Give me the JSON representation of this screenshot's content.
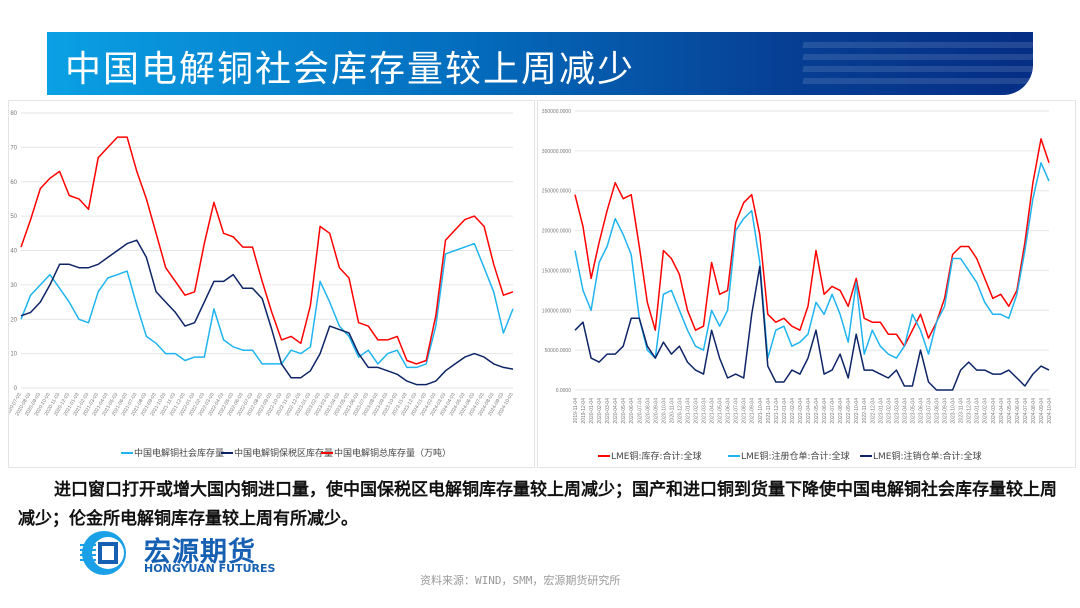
{
  "title": "中国电解铜社会库存量较上周减少",
  "colors": {
    "banner_start": "#0aa0e4",
    "banner_end": "#052e85",
    "red": "#ff0000",
    "light_blue": "#1fb4ef",
    "navy": "#0d2466"
  },
  "chart_data": [
    {
      "type": "line",
      "ylim": [
        0,
        80
      ],
      "yticks": [
        "0",
        "10",
        "20",
        "30",
        "40",
        "50",
        "60",
        "70",
        "80"
      ],
      "grid": true,
      "legend": "bottom",
      "x": [
        "2020-07-03",
        "2020-08-03",
        "2020-09-03",
        "2020-10-03",
        "2020-11-03",
        "2020-12-03",
        "2021-01-03",
        "2021-02-03",
        "2021-03-03",
        "2021-04-03",
        "2021-05-03",
        "2021-06-03",
        "2021-07-03",
        "2021-08-03",
        "2021-09-03",
        "2021-10-03",
        "2021-11-03",
        "2021-12-03",
        "2022-01-03",
        "2022-02-03",
        "2022-03-03",
        "2022-04-03",
        "2022-05-03",
        "2022-06-03",
        "2022-07-03",
        "2022-08-03",
        "2022-09-03",
        "2022-10-03",
        "2022-11-03",
        "2022-12-03",
        "2023-01-03",
        "2023-02-03",
        "2023-03-03",
        "2023-04-03",
        "2023-05-03",
        "2023-06-03",
        "2023-07-03",
        "2023-08-03",
        "2023-09-03",
        "2023-10-03",
        "2023-11-03",
        "2023-12-03",
        "2024-01-03",
        "2024-02-03",
        "2024-03-03",
        "2024-04-03",
        "2024-05-03",
        "2024-06-03",
        "2024-07-03",
        "2024-08-03",
        "2024-09-03",
        "2024-10-03"
      ],
      "series": [
        {
          "name": "中国电解铜社会库存量",
          "color": "#1fb4ef",
          "values": [
            20,
            27,
            30,
            33,
            29,
            25,
            20,
            19,
            28,
            32,
            33,
            34,
            24,
            15,
            13,
            10,
            10,
            8,
            9,
            9,
            23,
            14,
            12,
            11,
            11,
            7,
            7,
            7,
            11,
            10,
            12,
            31,
            25,
            18,
            15,
            9,
            11,
            7,
            10,
            11,
            6,
            6,
            7,
            18,
            39,
            40,
            41,
            42,
            35,
            28,
            16,
            23
          ]
        },
        {
          "name": "中国电解铜保税区库存量",
          "color": "#0d2466",
          "values": [
            21,
            22,
            25,
            30,
            36,
            36,
            35,
            35,
            36,
            38,
            40,
            42,
            43,
            38,
            28,
            25,
            22,
            18,
            19,
            25,
            31,
            31,
            33,
            29,
            29,
            26,
            17,
            7,
            3,
            3,
            5,
            10,
            18,
            17,
            16,
            10,
            6,
            6,
            5,
            4,
            2,
            1,
            1,
            2,
            5,
            7,
            9,
            10,
            9,
            7,
            6,
            5.5
          ]
        },
        {
          "name": "中国电解铜总库存量（万吨）",
          "color": "#ff0000",
          "values": [
            41,
            49,
            58,
            61,
            63,
            56,
            55,
            52,
            67,
            70,
            73,
            73,
            63,
            55,
            45,
            35,
            31,
            27,
            28,
            42,
            54,
            45,
            44,
            41,
            41,
            31,
            22,
            14,
            15,
            13,
            24,
            47,
            45,
            35,
            32,
            19,
            18,
            14,
            14,
            15,
            8,
            7,
            8,
            21,
            43,
            46,
            49,
            50,
            47,
            36,
            27,
            28
          ]
        }
      ]
    },
    {
      "type": "line",
      "ylim": [
        0,
        350000
      ],
      "yticks": [
        "0.0000",
        "50000.0000",
        "100000.0000",
        "150000.0000",
        "200000.0000",
        "250000.0000",
        "300000.0000",
        "350000.0000"
      ],
      "grid": true,
      "legend": "bottom",
      "x": [
        "2019-11-04",
        "2019-12-04",
        "2020-01-04",
        "2020-02-04",
        "2020-03-04",
        "2020-04-04",
        "2020-05-04",
        "2020-06-04",
        "2020-07-04",
        "2020-08-04",
        "2020-09-04",
        "2020-10-04",
        "2020-11-04",
        "2020-12-04",
        "2021-01-04",
        "2021-02-04",
        "2021-03-04",
        "2021-04-04",
        "2021-05-04",
        "2021-06-04",
        "2021-07-04",
        "2021-08-04",
        "2021-09-04",
        "2021-10-04",
        "2021-11-04",
        "2021-12-04",
        "2022-01-04",
        "2022-02-04",
        "2022-03-04",
        "2022-04-04",
        "2022-05-04",
        "2022-06-04",
        "2022-07-04",
        "2022-08-04",
        "2022-09-04",
        "2022-10-04",
        "2022-11-04",
        "2022-12-04",
        "2023-01-04",
        "2023-02-04",
        "2023-03-04",
        "2023-04-04",
        "2023-05-04",
        "2023-06-04",
        "2023-07-04",
        "2023-08-04",
        "2023-09-04",
        "2023-10-04",
        "2023-11-04",
        "2023-12-04",
        "2024-01-04",
        "2024-02-04",
        "2024-03-04",
        "2024-04-04",
        "2024-05-04",
        "2024-06-04",
        "2024-07-04",
        "2024-08-04",
        "2024-09-04",
        "2024-10-04"
      ],
      "series": [
        {
          "name": "LME铜:库存:合计:全球",
          "color": "#ff0000",
          "values": [
            245000,
            205000,
            140000,
            185000,
            225000,
            260000,
            240000,
            245000,
            180000,
            110000,
            75000,
            175000,
            165000,
            145000,
            100000,
            75000,
            80000,
            160000,
            120000,
            125000,
            210000,
            235000,
            245000,
            195000,
            95000,
            85000,
            90000,
            80000,
            75000,
            105000,
            175000,
            120000,
            130000,
            125000,
            105000,
            140000,
            90000,
            85000,
            85000,
            70000,
            70000,
            55000,
            75000,
            95000,
            65000,
            85000,
            115000,
            170000,
            180000,
            180000,
            165000,
            140000,
            115000,
            120000,
            105000,
            125000,
            185000,
            260000,
            315000,
            285000
          ]
        },
        {
          "name": "LME铜:注册仓单:合计:全球",
          "color": "#1fb4ef",
          "values": [
            175000,
            125000,
            100000,
            160000,
            180000,
            215000,
            195000,
            170000,
            90000,
            50000,
            40000,
            120000,
            125000,
            100000,
            75000,
            55000,
            50000,
            100000,
            80000,
            100000,
            200000,
            215000,
            225000,
            160000,
            40000,
            75000,
            80000,
            55000,
            60000,
            70000,
            110000,
            95000,
            120000,
            95000,
            60000,
            135000,
            45000,
            75000,
            55000,
            45000,
            40000,
            55000,
            95000,
            75000,
            45000,
            85000,
            105000,
            165000,
            165000,
            150000,
            135000,
            110000,
            95000,
            95000,
            90000,
            120000,
            175000,
            240000,
            285000,
            262000
          ]
        },
        {
          "name": "LME铜:注销仓单:合计:全球",
          "color": "#0d2466",
          "values": [
            75000,
            85000,
            40000,
            35000,
            45000,
            45000,
            55000,
            90000,
            90000,
            55000,
            40000,
            60000,
            45000,
            55000,
            35000,
            25000,
            20000,
            75000,
            40000,
            15000,
            20000,
            15000,
            95000,
            155000,
            30000,
            10000,
            10000,
            25000,
            20000,
            40000,
            75000,
            20000,
            25000,
            45000,
            15000,
            70000,
            25000,
            25000,
            20000,
            15000,
            25000,
            5000,
            5000,
            50000,
            10000,
            0,
            0,
            0,
            25000,
            35000,
            25000,
            25000,
            20000,
            20000,
            25000,
            15000,
            5000,
            20000,
            30000,
            25000
          ]
        }
      ]
    }
  ],
  "body_text": "进口窗口打开或增大国内铜进口量，使中国保税区电解铜库存量较上周减少；国产和进口铜到货量下降使中国电解铜社会库存量较上周减少；伦金所电解铜库存量较上周有所减少。",
  "logo": {
    "cn": "宏源期货",
    "en": "HONGYUAN FUTURES"
  },
  "source": "资料来源：WIND，SMM，宏源期货研究所"
}
